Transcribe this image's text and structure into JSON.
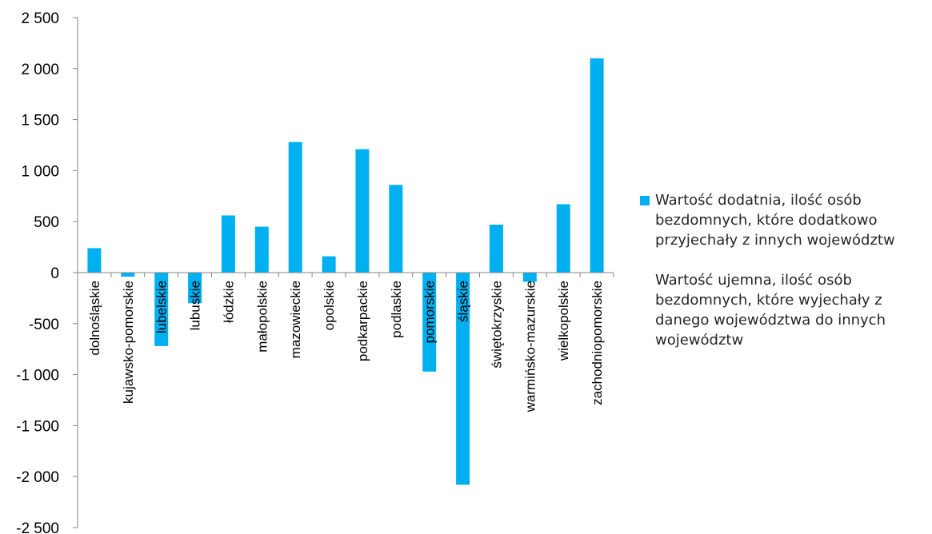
{
  "chart_data": {
    "type": "bar",
    "title": "",
    "xlabel": "",
    "ylabel": "",
    "ylim": [
      -2500,
      2500
    ],
    "yticks": [
      2500,
      2000,
      1500,
      1000,
      500,
      0,
      -500,
      -1000,
      -1500,
      -2000,
      -2500
    ],
    "ytick_labels": [
      "2 500",
      "2 000",
      "1 500",
      "1 000",
      "500",
      "0",
      "-500",
      "-1 000",
      "-1 500",
      "-2 000",
      "-2 500"
    ],
    "categories": [
      "dolnośląskie",
      "kujawsko-pomorskie",
      "lubelskie",
      "lubuskie",
      "łódzkie",
      "małopolskie",
      "mazowieckie",
      "opolskie",
      "podkarpackie",
      "podlaskie",
      "pomorskie",
      "śląskie",
      "świętokrzyskie",
      "warmińsko-mazurskie",
      "wielkopolskie",
      "zachodniopomorskie"
    ],
    "series": [
      {
        "name": "Wartość dodatnia, ilość osób bezdomnych, które dodatkowo przyjechały z innych województw",
        "values": [
          240,
          -40,
          -720,
          -300,
          560,
          450,
          1280,
          160,
          1210,
          860,
          -970,
          -2080,
          470,
          -90,
          670,
          2100
        ]
      }
    ],
    "legend_note": "Wartość ujemna, ilość osób bezdomnych, które wyjechały z danego województwa do innych województw",
    "bar_color": "#00b0f0",
    "legend_position": "right",
    "grid": false
  }
}
